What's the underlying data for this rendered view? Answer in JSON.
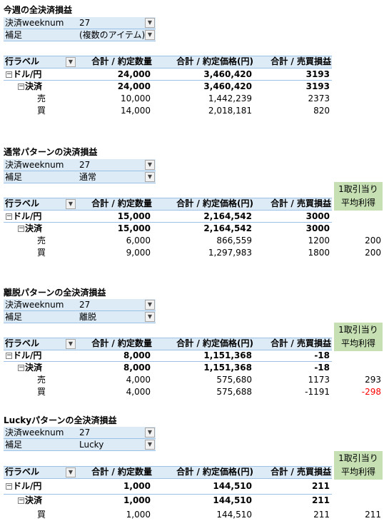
{
  "sections": [
    {
      "title": "今週の全決済損益",
      "filters": [
        {
          "label": "決済weeknum",
          "value": "27"
        },
        {
          "label": "補足",
          "value": "(複数のアイテム)"
        }
      ],
      "header": [
        "行ラベル",
        "合計 / 約定数量",
        "合計 / 約定価格(円)",
        "合計 / 売買損益"
      ],
      "rows": [
        {
          "label": "ドル/円",
          "cells": [
            "24,000",
            "3,460,420",
            "3193"
          ]
        },
        {
          "label": "決済",
          "cells": [
            "24,000",
            "3,460,420",
            "3193"
          ]
        },
        {
          "label": "売",
          "cells": [
            "10,000",
            "1,442,239",
            "2373"
          ]
        },
        {
          "label": "買",
          "cells": [
            "14,000",
            "2,018,181",
            "820"
          ]
        }
      ]
    },
    {
      "title": "通常パターンの決済損益",
      "filters": [
        {
          "label": "決済weeknum",
          "value": "27"
        },
        {
          "label": "補足",
          "value": "通常"
        }
      ],
      "header": [
        "行ラベル",
        "合計 / 約定数量",
        "合計 / 約定価格(円)",
        "合計 / 売買損益"
      ],
      "extra_header": [
        "1取引当り",
        "平均利得"
      ],
      "rows": [
        {
          "label": "ドル/円",
          "cells": [
            "15,000",
            "2,164,542",
            "3000"
          ]
        },
        {
          "label": "決済",
          "cells": [
            "15,000",
            "2,164,542",
            "3000"
          ]
        },
        {
          "label": "売",
          "cells": [
            "6,000",
            "866,559",
            "1200"
          ],
          "extra": "200"
        },
        {
          "label": "買",
          "cells": [
            "9,000",
            "1,297,983",
            "1800"
          ],
          "extra": "200"
        }
      ]
    },
    {
      "title": "離脱パターンの全決済損益",
      "filters": [
        {
          "label": "決済weeknum",
          "value": "27"
        },
        {
          "label": "補足",
          "value": "離脱"
        }
      ],
      "header": [
        "行ラベル",
        "合計 / 約定数量",
        "合計 / 約定価格(円)",
        "合計 / 売買損益"
      ],
      "extra_header": [
        "1取引当り",
        "平均利得"
      ],
      "rows": [
        {
          "label": "ドル/円",
          "cells": [
            "8,000",
            "1,151,368",
            "-18"
          ]
        },
        {
          "label": "決済",
          "cells": [
            "8,000",
            "1,151,368",
            "-18"
          ]
        },
        {
          "label": "売",
          "cells": [
            "4,000",
            "575,680",
            "1173"
          ],
          "extra": "293"
        },
        {
          "label": "買",
          "cells": [
            "4,000",
            "575,688",
            "-1191"
          ],
          "extra": "-298",
          "extra_color": "#ff0000"
        }
      ]
    },
    {
      "title": "Luckyパターンの全決済損益",
      "filters": [
        {
          "label": "決済weeknum",
          "value": "27"
        },
        {
          "label": "補足",
          "value": "Lucky"
        }
      ],
      "header": [
        "行ラベル",
        "合計 / 約定数量",
        "合計 / 約定価格(円)",
        "合計 / 売買損益"
      ],
      "extra_header": [
        "1取引当り",
        "平均利得"
      ],
      "rows": [
        {
          "label": "ドル/円",
          "cells": [
            "1,000",
            "144,510",
            "211"
          ]
        },
        {
          "label": "決済",
          "cells": [
            "1,000",
            "144,510",
            "211"
          ]
        },
        {
          "label": "買",
          "cells": [
            "1,000",
            "144,510",
            "211"
          ],
          "extra": "211"
        }
      ]
    }
  ]
}
